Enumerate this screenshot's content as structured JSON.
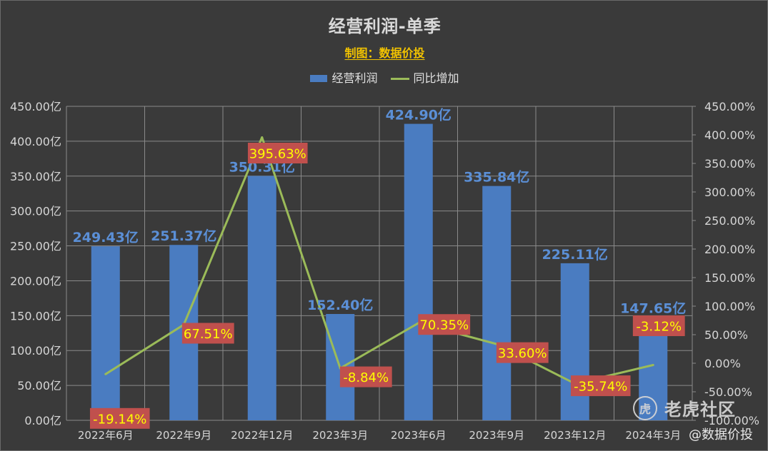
{
  "chart_data": {
    "type": "bar",
    "title": "经营利润-单季",
    "subtitle": "制图：数据价投",
    "categories": [
      "2022年6月",
      "2022年9月",
      "2022年12月",
      "2023年3月",
      "2023年6月",
      "2023年9月",
      "2023年12月",
      "2024年3月"
    ],
    "series": [
      {
        "name": "经营利润",
        "type": "bar",
        "axis": "left",
        "values": [
          249.43,
          251.37,
          350.31,
          152.4,
          424.9,
          335.84,
          225.11,
          147.65
        ],
        "labels": [
          "249.43亿",
          "251.37亿",
          "350.31亿",
          "152.40亿",
          "424.90亿",
          "335.84亿",
          "225.11亿",
          "147.65亿"
        ]
      },
      {
        "name": "同比增加",
        "type": "line",
        "axis": "right",
        "values": [
          -19.14,
          67.51,
          395.63,
          -8.84,
          70.35,
          33.6,
          -35.74,
          -3.12
        ],
        "labels": [
          "-19.14%",
          "67.51%",
          "395.63%",
          "-8.84%",
          "70.35%",
          "33.60%",
          "-35.74%",
          "-3.12%"
        ]
      }
    ],
    "y_left": {
      "min": 0,
      "max": 450,
      "ticks": [
        "0.00亿",
        "50.00亿",
        "100.00亿",
        "150.00亿",
        "200.00亿",
        "250.00亿",
        "300.00亿",
        "350.00亿",
        "400.00亿",
        "450.00亿"
      ]
    },
    "y_right": {
      "min": -100,
      "max": 450,
      "ticks": [
        "-100.00%",
        "-50.00%",
        "0.00%",
        "50.00%",
        "100.00%",
        "150.00%",
        "200.00%",
        "250.00%",
        "300.00%",
        "350.00%",
        "400.00%",
        "450.00%"
      ]
    },
    "grid": true,
    "legend_position": "top-center",
    "colors": {
      "bar": "#4a7cc1",
      "line": "#9bbb59",
      "bar_label": "#5b8fd6",
      "pct_label_bg": "#c0504d",
      "pct_label_text": "#ffff00",
      "background": "#3a3a3a",
      "grid": "#8a8a8a",
      "axis_text": "#d6d6d6"
    }
  },
  "watermark": {
    "logo_text": "虎",
    "brand": "老虎社区",
    "author": "@数据价投"
  }
}
